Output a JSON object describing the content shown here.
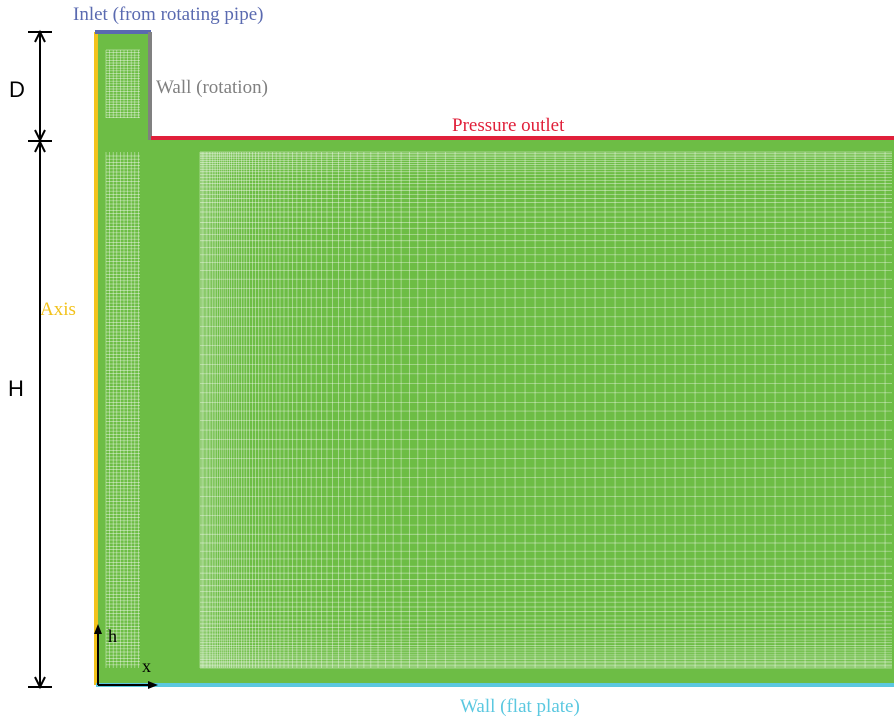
{
  "labels": {
    "inlet": "Inlet (from rotating pipe)",
    "wall_rotation": "Wall (rotation)",
    "pressure_outlet": "Pressure outlet",
    "axis": "Axis",
    "wall_flat_plate": "Wall (flat plate)",
    "dim_d": "D",
    "dim_h": "H",
    "coord_h": "h",
    "coord_x": "x"
  },
  "colors": {
    "mesh_fill": "#6dbd45",
    "mesh_line": "#5fb33c",
    "inlet": "#5a6ab0",
    "wall_rotation": "#808080",
    "pressure_outlet": "#e0203a",
    "axis": "#f2c21b",
    "wall_flat_plate": "#5bc8e0",
    "dimension": "#000000"
  }
}
